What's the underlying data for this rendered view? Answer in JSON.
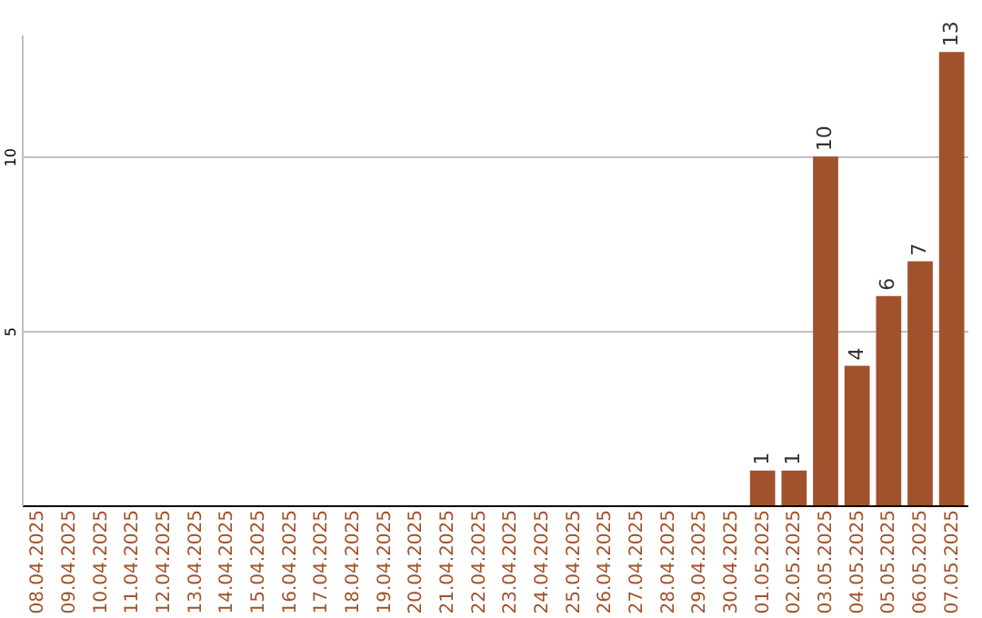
{
  "chart_data": {
    "type": "bar",
    "categories": [
      "08.04.2025",
      "09.04.2025",
      "10.04.2025",
      "11.04.2025",
      "12.04.2025",
      "13.04.2025",
      "14.04.2025",
      "15.04.2025",
      "16.04.2025",
      "17.04.2025",
      "18.04.2025",
      "19.04.2025",
      "20.04.2025",
      "21.04.2025",
      "22.04.2025",
      "23.04.2025",
      "24.04.2025",
      "25.04.2025",
      "26.04.2025",
      "27.04.2025",
      "28.04.2025",
      "29.04.2025",
      "30.04.2025",
      "01.05.2025",
      "02.05.2025",
      "03.05.2025",
      "04.05.2025",
      "05.05.2025",
      "06.05.2025",
      "07.05.2025"
    ],
    "values": [
      0,
      0,
      0,
      0,
      0,
      0,
      0,
      0,
      0,
      0,
      0,
      0,
      0,
      0,
      0,
      0,
      0,
      0,
      0,
      0,
      0,
      0,
      0,
      1,
      1,
      10,
      4,
      6,
      7,
      13
    ],
    "value_labels": [
      null,
      null,
      null,
      null,
      null,
      null,
      null,
      null,
      null,
      null,
      null,
      null,
      null,
      null,
      null,
      null,
      null,
      null,
      null,
      null,
      null,
      null,
      null,
      "1",
      "1",
      "10",
      "4",
      "6",
      "7",
      "13"
    ],
    "color": "#a0522d",
    "ylim": [
      0,
      13.5
    ],
    "yticks": [
      5,
      10
    ],
    "grid": "y"
  }
}
